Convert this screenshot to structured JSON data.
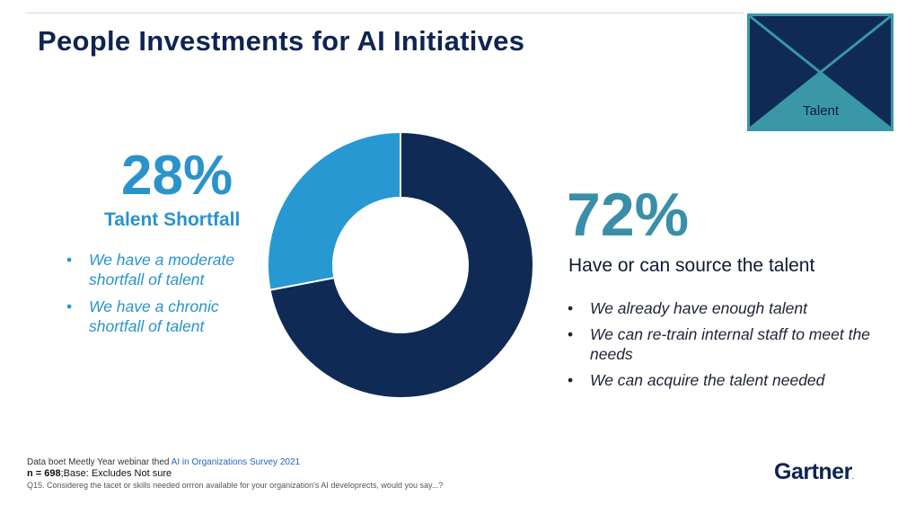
{
  "title": "People Investments for AI Initiatives",
  "talent_box": {
    "label": "Talent",
    "colors": {
      "frame": "#0f2a55",
      "accent": "#3a97a6"
    }
  },
  "left": {
    "percent": "28%",
    "label": "Talent Shortfall",
    "bullets": [
      "We have a moderate shortfall of talent",
      "We have a chronic shortfall of talent"
    ]
  },
  "right": {
    "percent": "72%",
    "label": "Have or can source the talent",
    "bullets": [
      "We already have enough talent",
      "We can re-train internal staff to meet the needs",
      "We can acquire the talent needed"
    ]
  },
  "chart_data": {
    "type": "pie",
    "subtype": "donut",
    "slices": [
      {
        "label": "Have or can source the talent",
        "value": 72,
        "color": "#0f2a55"
      },
      {
        "label": "Talent Shortfall",
        "value": 28,
        "color": "#2898d3"
      }
    ]
  },
  "footer": {
    "line1_prefix": "Data boet Meetly Year webinar thed",
    "line1_highlight": "AI in Organizations Survey 2021",
    "line2_prefix": "n = 698",
    "line2_rest": ";Base: Excludes Not sure",
    "line3": "Q15. Considereg the tacet or skills needed orrron available for your organization's AI developrects, would you say...?"
  },
  "logo": {
    "text": "Gartner",
    "mark": "."
  }
}
